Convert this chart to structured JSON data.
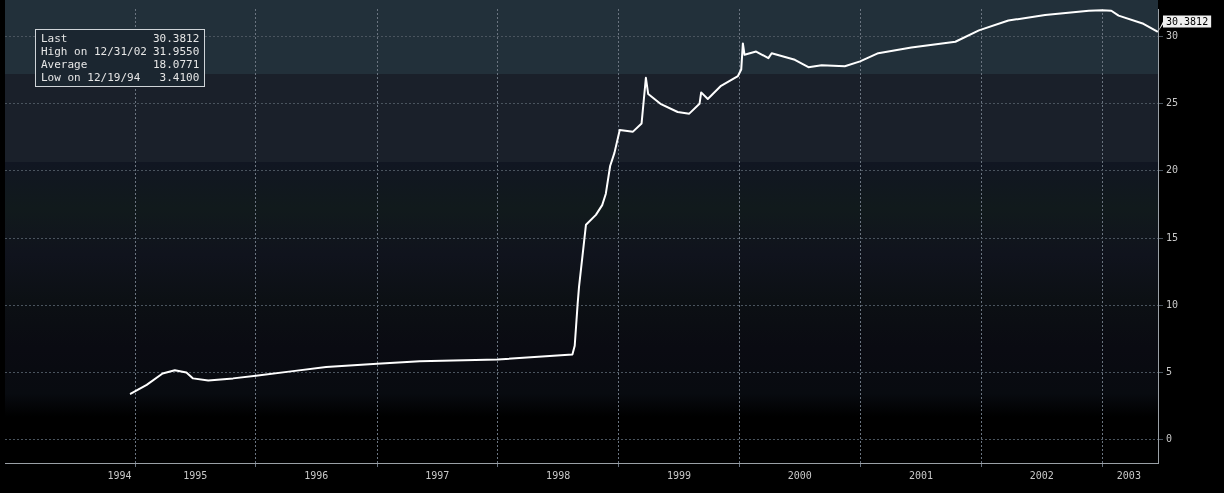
{
  "chart_data": {
    "type": "line",
    "x": [
      "1994-12-19",
      "1995-02-05",
      "1995-03-25",
      "1995-05-01",
      "1995-06-05",
      "1995-06-25",
      "1995-08-10",
      "1995-10-24",
      "1996-01-01",
      "1996-04-22",
      "1996-07-31",
      "1997-01-01",
      "1997-05-10",
      "1998-01-01",
      "1998-08-14",
      "1998-08-21",
      "1998-08-30",
      "1998-09-03",
      "1998-09-24",
      "1998-10-24",
      "1998-11-12",
      "1998-11-23",
      "1998-12-06",
      "1998-12-19",
      "1999-01-04",
      "1999-02-13",
      "1999-03-11",
      "1999-03-24",
      "1999-03-31",
      "1999-05-07",
      "1999-06-28",
      "1999-08-02",
      "1999-09-02",
      "1999-09-07",
      "1999-09-27",
      "1999-11-06",
      "1999-12-27",
      "2000-01-06",
      "2000-01-11",
      "2000-01-16",
      "2000-02-20",
      "2000-03-28",
      "2000-04-07",
      "2000-06-16",
      "2000-07-27",
      "2000-09-05",
      "2000-11-14",
      "2000-12-30",
      "2001-02-23",
      "2001-06-03",
      "2001-10-14",
      "2001-12-24",
      "2002-03-23",
      "2002-07-12",
      "2002-11-21",
      "2002-12-31",
      "2003-01-28",
      "2003-02-19",
      "2003-05-05",
      "2003-06-15"
    ],
    "series": [
      {
        "color": "#ffffff",
        "values": [
          3.41,
          4.07,
          4.91,
          5.16,
          4.99,
          4.55,
          4.4,
          4.55,
          4.74,
          5.09,
          5.4,
          5.64,
          5.82,
          5.96,
          6.33,
          6.98,
          10.15,
          11.36,
          15.99,
          16.72,
          17.45,
          18.3,
          20.36,
          21.34,
          23.04,
          22.92,
          23.53,
          26.93,
          25.72,
          24.99,
          24.38,
          24.26,
          24.99,
          25.84,
          25.35,
          26.33,
          27.06,
          27.54,
          29.49,
          28.64,
          28.88,
          28.39,
          28.76,
          28.27,
          27.72,
          27.86,
          27.79,
          28.15,
          28.76,
          29.18,
          29.61,
          30.46,
          31.19,
          31.6,
          31.92,
          31.955,
          31.92,
          31.56,
          30.95,
          30.3812
        ]
      }
    ],
    "xlim": [
      "1993-12-04",
      "2003-06-18"
    ],
    "xticks": [
      {
        "value": "1994-11-15",
        "label": "1994"
      },
      {
        "value": "1995-01-01",
        "label": null
      },
      {
        "value": "1995-07-02",
        "label": "1995"
      },
      {
        "value": "1996-01-01",
        "label": null
      },
      {
        "value": "1996-07-01",
        "label": "1996"
      },
      {
        "value": "1997-01-01",
        "label": null
      },
      {
        "value": "1997-07-02",
        "label": "1997"
      },
      {
        "value": "1998-01-01",
        "label": null
      },
      {
        "value": "1998-07-02",
        "label": "1998"
      },
      {
        "value": "1999-01-01",
        "label": null
      },
      {
        "value": "1999-07-02",
        "label": "1999"
      },
      {
        "value": "2000-01-01",
        "label": null
      },
      {
        "value": "2000-07-01",
        "label": "2000"
      },
      {
        "value": "2001-01-01",
        "label": null
      },
      {
        "value": "2001-07-02",
        "label": "2001"
      },
      {
        "value": "2002-01-01",
        "label": null
      },
      {
        "value": "2002-07-02",
        "label": "2002"
      },
      {
        "value": "2003-01-01",
        "label": null
      },
      {
        "value": "2003-03-22",
        "label": "2003"
      }
    ],
    "ylim": [
      -1.75,
      32.05
    ],
    "yticks": [
      0,
      5,
      10,
      15,
      20,
      25,
      30
    ],
    "grid": true,
    "marker": "none",
    "line_style": "solid",
    "annotations": [
      "Last 30.3812",
      "High on 12/31/02 31.9550",
      "Average 18.0771",
      "Low on 12/19/94 3.4100",
      {
        "text": "30.3812",
        "x": "2003-06-15",
        "y": 30.3812
      }
    ]
  }
}
